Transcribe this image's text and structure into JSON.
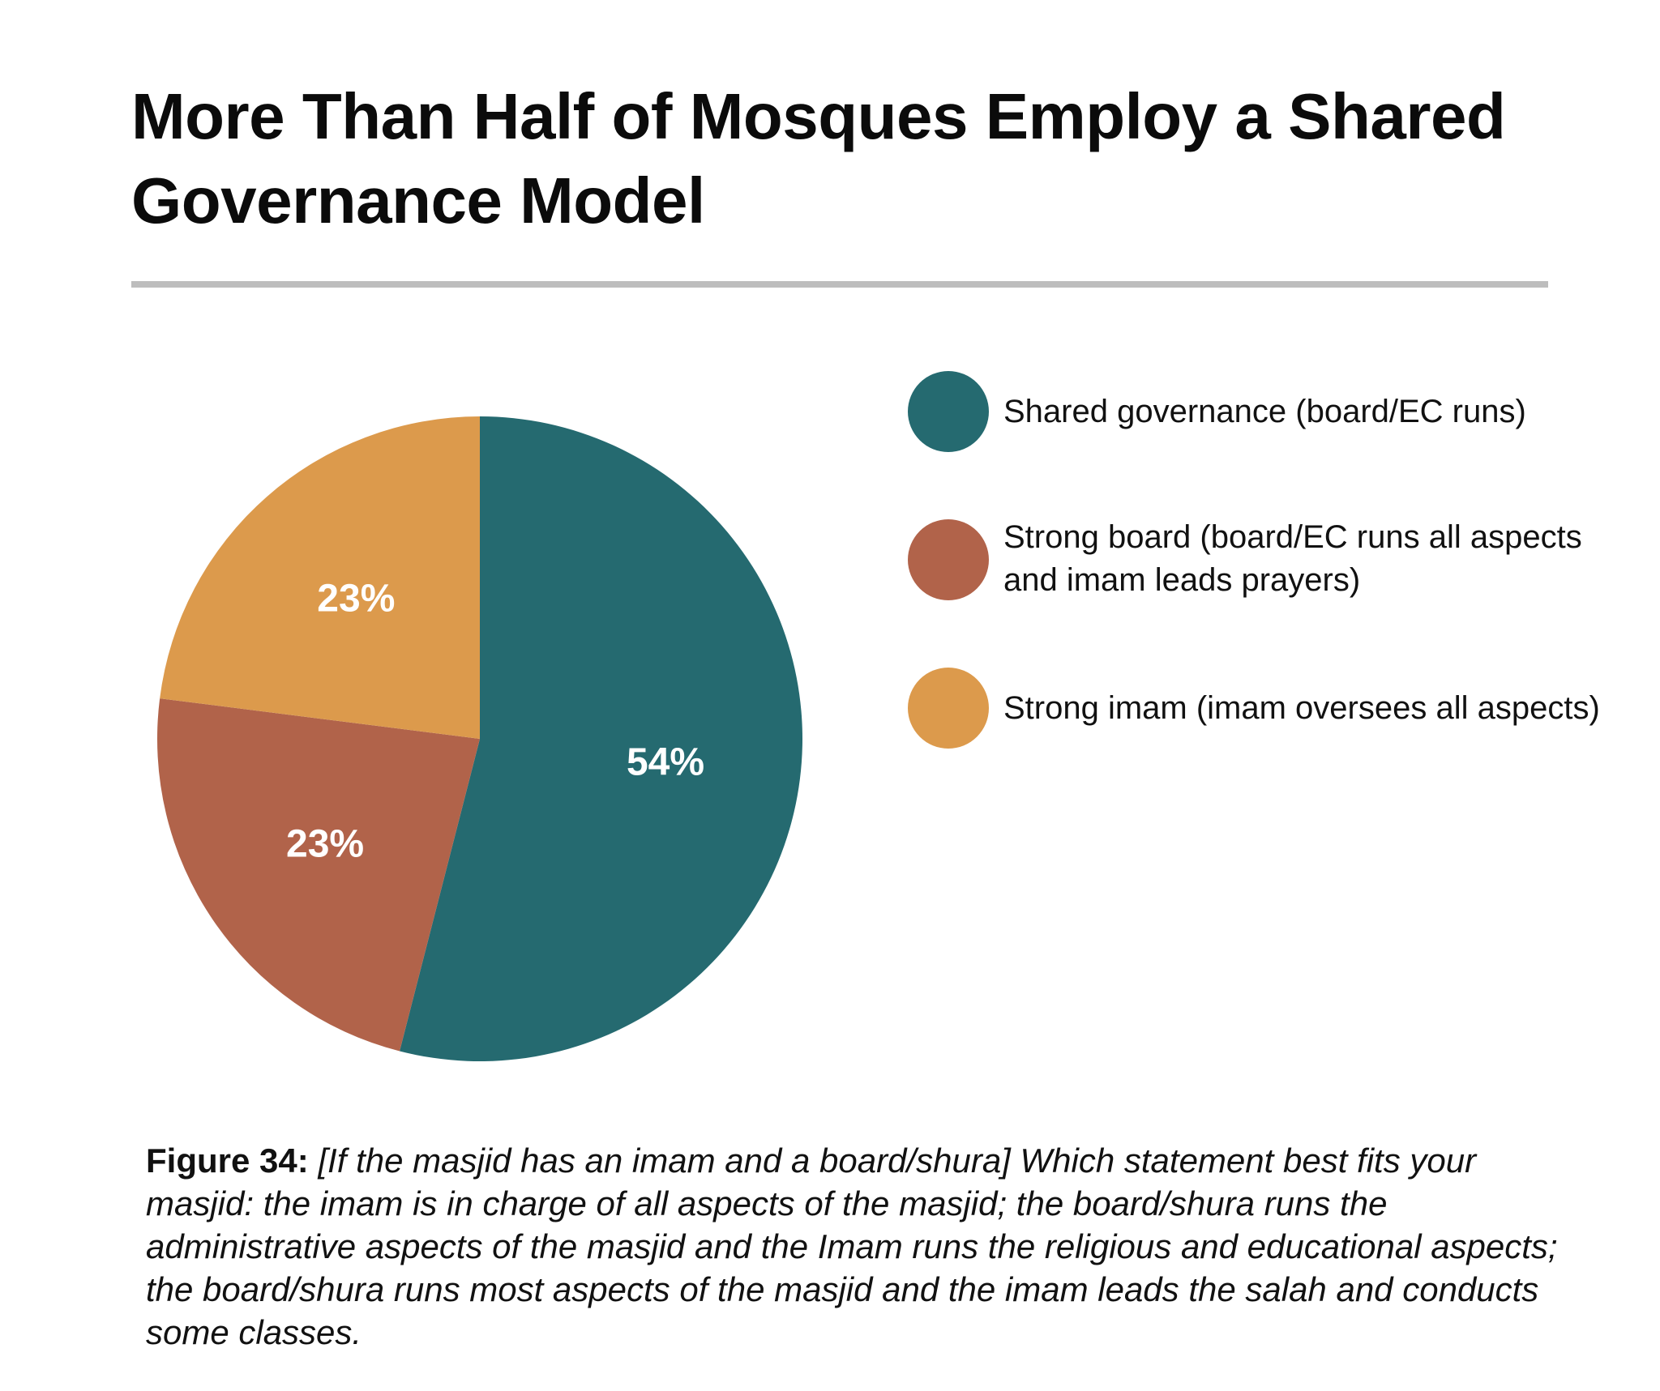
{
  "title": "More Than Half of Mosques Employ a Shared Governance Model",
  "caption": {
    "label": "Figure 34:",
    "text": "[If the masjid has an imam and a board/shura] Which statement best fits your masjid: the imam is in charge of all aspects of the masjid; the board/shura runs the administrative aspects of the masjid and the Imam runs the religious and educational aspects; the board/shura runs most aspects of the masjid and the imam leads the salah and conducts some classes."
  },
  "chart_data": {
    "type": "pie",
    "title": "More Than Half of Mosques Employ a Shared Governance Model",
    "legend_position": "right",
    "start": "top",
    "direction": "clockwise",
    "slices": [
      {
        "name": "Shared governance (board/EC runs)",
        "value": 54,
        "label": "54%",
        "color": "#256a70"
      },
      {
        "name": "Strong board (board/EC runs all aspects and imam leads prayers)",
        "value": 23,
        "label": "23%",
        "color": "#b1634a"
      },
      {
        "name": "Strong imam (imam oversees all aspects)",
        "value": 23,
        "label": "23%",
        "color": "#dc9a4c"
      }
    ],
    "label_color": "#ffffff"
  }
}
